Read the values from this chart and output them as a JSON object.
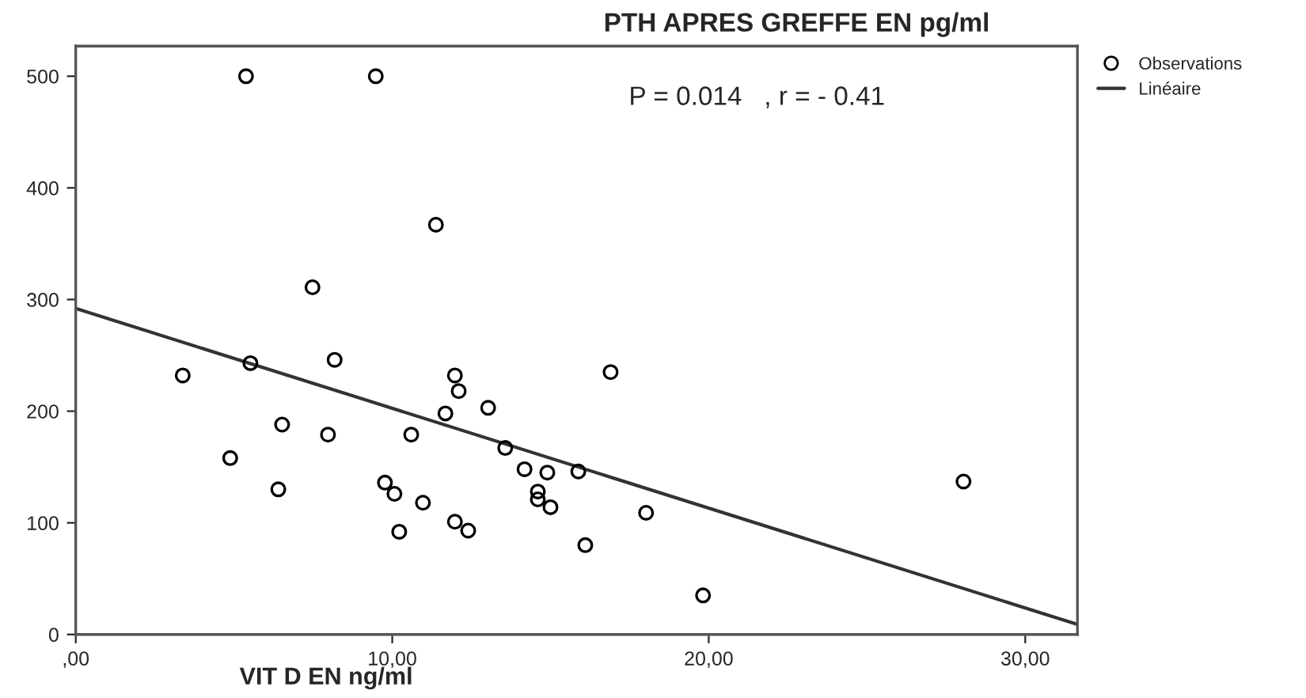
{
  "chart_data": {
    "type": "scatter",
    "title": "PTH APRES GREFFE EN pg/ml",
    "xlabel": "VIT D EN ng/ml",
    "annotations": [
      "P = 0.014   , r = - 0.41"
    ],
    "xlim": [
      0,
      31.65
    ],
    "ylim": [
      0,
      527
    ],
    "xticks": [
      {
        "value": 0,
        "label": ",00"
      },
      {
        "value": 10,
        "label": "10,00"
      },
      {
        "value": 20,
        "label": "20,00"
      },
      {
        "value": 30,
        "label": "30,00"
      }
    ],
    "yticks": [
      0,
      100,
      200,
      300,
      400,
      500
    ],
    "grid": false,
    "legend": "top right",
    "marker": "circle",
    "series": [
      {
        "name": "Observations",
        "color": "#000000",
        "x": [
          5.38,
          9.48,
          11.38,
          7.48,
          3.38,
          5.52,
          8.18,
          6.52,
          4.88,
          6.4,
          7.97,
          9.77,
          10.07,
          10.22,
          10.6,
          10.97,
          11.98,
          12.1,
          11.68,
          11.98,
          12.4,
          13.03,
          13.57,
          14.18,
          14.9,
          14.6,
          14.6,
          15.0,
          15.88,
          16.1,
          16.9,
          18.02,
          19.82,
          28.05
        ],
        "values": [
          500,
          500,
          367,
          311,
          232,
          243,
          246,
          188,
          158,
          130,
          179,
          136,
          126,
          92,
          179,
          118,
          232,
          218,
          198,
          101,
          93,
          203,
          167,
          148,
          145,
          128,
          121,
          114,
          146,
          80,
          235,
          109,
          35,
          137
        ]
      },
      {
        "name": "Linéaire",
        "type": "line",
        "color": "#333333",
        "marker": "none",
        "x": [
          0,
          31.65
        ],
        "values": [
          292,
          9
        ]
      }
    ]
  }
}
